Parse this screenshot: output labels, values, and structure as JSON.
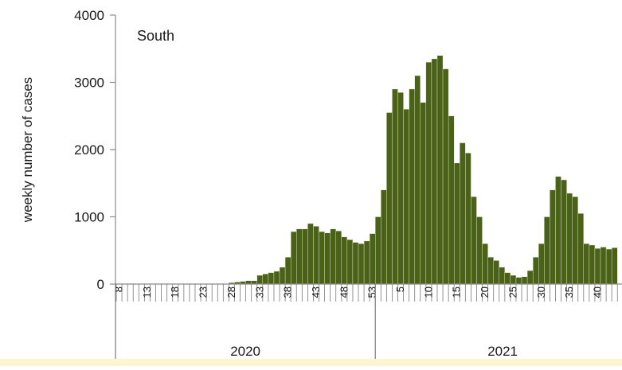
{
  "chart_data": {
    "type": "bar",
    "panel_label": "South",
    "ylabel": "weekly number of cases",
    "xlabel": "",
    "ylim": [
      0,
      4000
    ],
    "y_ticks": [
      0,
      1000,
      2000,
      3000,
      4000
    ],
    "y_tick_labels": [
      "0",
      "1000",
      "2000",
      "3000",
      "4000"
    ],
    "year_groups": [
      {
        "label": "2020",
        "first_week": 8,
        "last_week": 53
      },
      {
        "label": "2021",
        "first_week": 1,
        "last_week": 43
      }
    ],
    "week_tick_labels": [
      "8",
      "13",
      "18",
      "23",
      "28",
      "33",
      "38",
      "43",
      "48",
      "53",
      "5",
      "10",
      "15",
      "20",
      "25",
      "30",
      "35",
      "40"
    ],
    "bar_color": "#4a6118",
    "categories": [
      "2020-W08",
      "2020-W09",
      "2020-W10",
      "2020-W11",
      "2020-W12",
      "2020-W13",
      "2020-W14",
      "2020-W15",
      "2020-W16",
      "2020-W17",
      "2020-W18",
      "2020-W19",
      "2020-W20",
      "2020-W21",
      "2020-W22",
      "2020-W23",
      "2020-W24",
      "2020-W25",
      "2020-W26",
      "2020-W27",
      "2020-W28",
      "2020-W29",
      "2020-W30",
      "2020-W31",
      "2020-W32",
      "2020-W33",
      "2020-W34",
      "2020-W35",
      "2020-W36",
      "2020-W37",
      "2020-W38",
      "2020-W39",
      "2020-W40",
      "2020-W41",
      "2020-W42",
      "2020-W43",
      "2020-W44",
      "2020-W45",
      "2020-W46",
      "2020-W47",
      "2020-W48",
      "2020-W49",
      "2020-W50",
      "2020-W51",
      "2020-W52",
      "2020-W53",
      "2021-W01",
      "2021-W02",
      "2021-W03",
      "2021-W04",
      "2021-W05",
      "2021-W06",
      "2021-W07",
      "2021-W08",
      "2021-W09",
      "2021-W10",
      "2021-W11",
      "2021-W12",
      "2021-W13",
      "2021-W14",
      "2021-W15",
      "2021-W16",
      "2021-W17",
      "2021-W18",
      "2021-W19",
      "2021-W20",
      "2021-W21",
      "2021-W22",
      "2021-W23",
      "2021-W24",
      "2021-W25",
      "2021-W26",
      "2021-W27",
      "2021-W28",
      "2021-W29",
      "2021-W30",
      "2021-W31",
      "2021-W32",
      "2021-W33",
      "2021-W34",
      "2021-W35",
      "2021-W36",
      "2021-W37",
      "2021-W38",
      "2021-W39",
      "2021-W40",
      "2021-W41",
      "2021-W42",
      "2021-W43"
    ],
    "values": [
      5,
      5,
      5,
      5,
      5,
      5,
      5,
      5,
      5,
      5,
      5,
      5,
      5,
      5,
      5,
      5,
      5,
      5,
      5,
      5,
      20,
      30,
      40,
      50,
      50,
      130,
      150,
      170,
      190,
      250,
      400,
      780,
      820,
      820,
      900,
      860,
      780,
      760,
      820,
      790,
      700,
      660,
      620,
      600,
      640,
      750,
      1000,
      1400,
      2550,
      2900,
      2850,
      2600,
      2900,
      3100,
      2700,
      3300,
      3350,
      3400,
      3200,
      2500,
      1800,
      2100,
      1950,
      1300,
      1000,
      600,
      400,
      350,
      250,
      170,
      130,
      100,
      110,
      200,
      400,
      600,
      1000,
      1400,
      1600,
      1550,
      1350,
      1300,
      1050,
      600,
      580,
      530,
      550,
      520,
      540
    ]
  }
}
